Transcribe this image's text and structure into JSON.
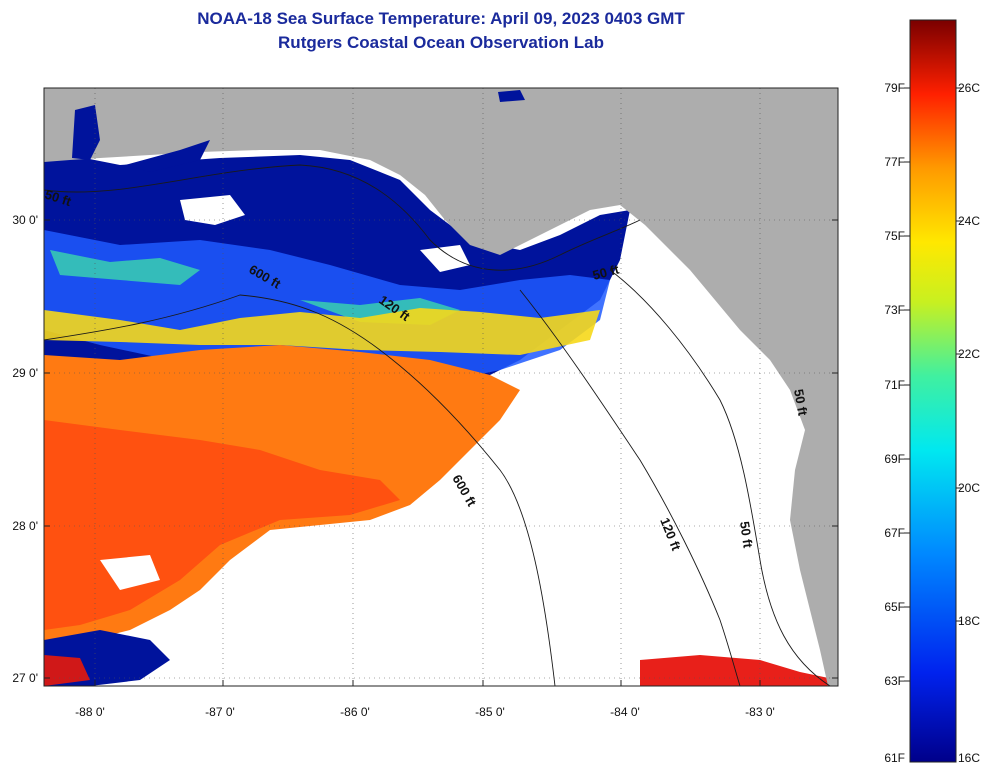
{
  "header": {
    "title": "NOAA-18 Sea Surface Temperature:  April 09, 2023 0403 GMT",
    "subtitle": "Rutgers Coastal Ocean Observation Lab"
  },
  "axes": {
    "lat_labels": [
      "30 0'",
      "29 0'",
      "28 0'",
      "27 0'"
    ],
    "lon_labels": [
      "-88 0'",
      "-87 0'",
      "-86 0'",
      "-85 0'",
      "-84 0'",
      "-83 0'"
    ]
  },
  "depth_labels": [
    "50 ft",
    "600 ft",
    "120 ft",
    "600 ft",
    "50 ft",
    "120 ft",
    "50 ft",
    "50 ft"
  ],
  "colorbar": {
    "f_labels": [
      "79F",
      "77F",
      "75F",
      "73F",
      "71F",
      "69F",
      "67F",
      "65F",
      "63F",
      "61F"
    ],
    "c_labels": [
      "26C",
      "24C",
      "22C",
      "20C",
      "18C",
      "16C"
    ]
  },
  "colors": {
    "land": "#adadad",
    "cloud": "#ffffff",
    "cold": "#00129a",
    "warm": "#ff6a10",
    "title": "#1a2a9c"
  }
}
